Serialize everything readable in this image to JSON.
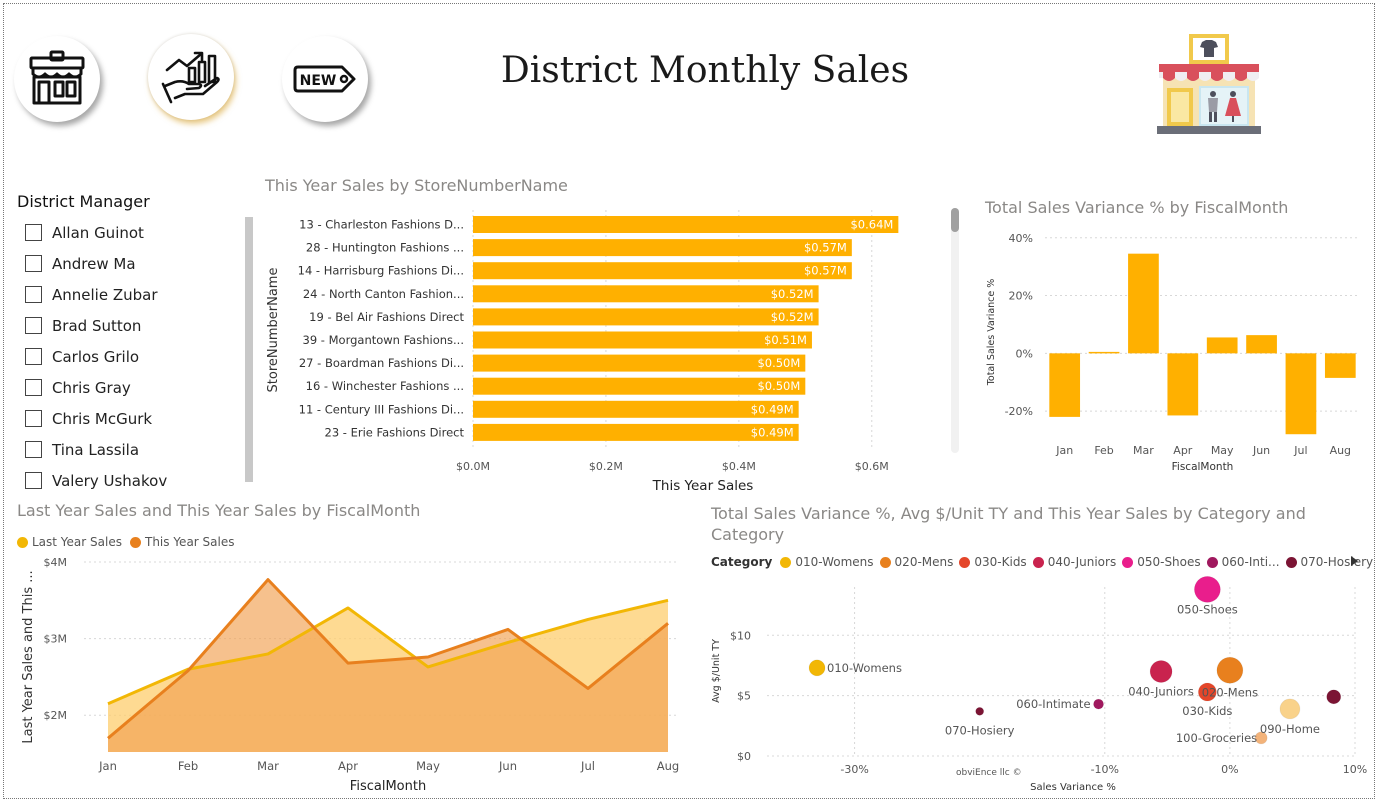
{
  "report": {
    "title": "District Monthly Sales",
    "watermark": "obviEnce llc ©"
  },
  "nav": [
    {
      "name": "store-nav-button",
      "icon": "store-icon",
      "active": false
    },
    {
      "name": "sales-growth-nav-button",
      "icon": "sales-growth-icon",
      "active": true
    },
    {
      "name": "new-stores-nav-button",
      "icon": "new-tag-icon",
      "active": false
    }
  ],
  "colors": {
    "accent": "#FFB000",
    "womens": "#F2B705",
    "mens": "#E8801E",
    "kids": "#E4462A",
    "juniors": "#C9234E",
    "shoes": "#E91E8C",
    "intimate": "#A0185E",
    "hosiery": "#7B1434",
    "groceries": "#F3B37A",
    "home": "#F9D28A"
  },
  "slicer": {
    "title": "District Manager",
    "items": [
      "Allan Guinot",
      "Andrew Ma",
      "Annelie Zubar",
      "Brad Sutton",
      "Carlos Grilo",
      "Chris Gray",
      "Chris McGurk",
      "Tina Lassila",
      "Valery Ushakov"
    ]
  },
  "bar_chart": {
    "title": "This Year Sales by StoreNumberName",
    "chart_data": {
      "type": "bar",
      "orientation": "horizontal",
      "categories": [
        "13 - Charleston Fashions D...",
        "28 - Huntington Fashions ...",
        "14 - Harrisburg Fashions Di...",
        "24 - North Canton Fashion...",
        "19 - Bel Air Fashions Direct",
        "39 - Morgantown Fashions...",
        "27 - Boardman Fashions Di...",
        "16 - Winchester Fashions ...",
        "11 - Century III Fashions Di...",
        "23 - Erie Fashions Direct"
      ],
      "values": [
        0.64,
        0.57,
        0.57,
        0.52,
        0.52,
        0.51,
        0.5,
        0.5,
        0.49,
        0.49
      ],
      "value_labels": [
        "$0.64M",
        "$0.57M",
        "$0.57M",
        "$0.52M",
        "$0.52M",
        "$0.51M",
        "$0.50M",
        "$0.50M",
        "$0.49M",
        "$0.49M"
      ],
      "xlabel": "This Year Sales",
      "ylabel": "StoreNumberName",
      "xlim": [
        0,
        0.65
      ],
      "xticks": [
        0,
        0.2,
        0.4,
        0.6
      ],
      "xtick_labels": [
        "$0.0M",
        "$0.2M",
        "$0.4M",
        "$0.6M"
      ],
      "grid": true
    }
  },
  "variance_chart": {
    "title": "Total Sales Variance % by FiscalMonth",
    "chart_data": {
      "type": "bar",
      "categories": [
        "Jan",
        "Feb",
        "Mar",
        "Apr",
        "May",
        "Jun",
        "Jul",
        "Aug"
      ],
      "values": [
        -22,
        0.5,
        34.5,
        -21.5,
        5.5,
        6.3,
        -28,
        -8.5
      ],
      "xlabel": "FiscalMonth",
      "ylabel": "Total Sales Variance %",
      "ylim": [
        -30,
        42
      ],
      "yticks": [
        -20,
        0,
        20,
        40
      ],
      "ytick_labels": [
        "-20%",
        "0%",
        "20%",
        "40%"
      ],
      "grid": true
    }
  },
  "area_chart": {
    "title": "Last Year Sales and This Year Sales by FiscalMonth",
    "legend": [
      "Last Year Sales",
      "This Year Sales"
    ],
    "chart_data": {
      "type": "area",
      "categories": [
        "Jan",
        "Feb",
        "Mar",
        "Apr",
        "May",
        "Jun",
        "Jul",
        "Aug"
      ],
      "series": [
        {
          "name": "Last Year Sales",
          "values": [
            2.15,
            2.6,
            2.8,
            3.4,
            2.63,
            2.95,
            3.25,
            3.5
          ]
        },
        {
          "name": "This Year Sales",
          "values": [
            1.7,
            2.58,
            3.77,
            2.68,
            2.76,
            3.12,
            2.35,
            3.2
          ]
        }
      ],
      "xlabel": "FiscalMonth",
      "ylabel": "Last Year Sales and This ...",
      "ylim": [
        1.52,
        4.0
      ],
      "yticks": [
        2,
        3,
        4
      ],
      "ytick_labels": [
        "$2M",
        "$3M",
        "$4M"
      ],
      "grid": true
    }
  },
  "scatter_chart": {
    "title": "Total Sales Variance %, Avg $/Unit TY and This Year Sales by Category and Category",
    "legend_title": "Category",
    "legend": [
      "010-Womens",
      "020-Mens",
      "030-Kids",
      "040-Juniors",
      "050-Shoes",
      "060-Inti...",
      "070-Hosiery"
    ],
    "chart_data": {
      "type": "scatter",
      "xlabel": "Sales Variance %",
      "ylabel": "Avg $/Unit TY",
      "xlim": [
        -37,
        10
      ],
      "ylim": [
        0,
        14
      ],
      "xticks": [
        -30,
        -10,
        0,
        10
      ],
      "xtick_labels": [
        "-30%",
        "-10%",
        "0%",
        "10%"
      ],
      "yticks": [
        0,
        5,
        10
      ],
      "ytick_labels": [
        "$0",
        "$5",
        "$10"
      ],
      "grid": true,
      "points": [
        {
          "label": "010-Womens",
          "x": -33,
          "y": 7.3,
          "size": 8,
          "color": "#F2B705"
        },
        {
          "label": "020-Mens",
          "x": 0,
          "y": 7.1,
          "size": 13,
          "color": "#E8801E"
        },
        {
          "label": "030-Kids",
          "x": -1.8,
          "y": 5.3,
          "size": 9,
          "color": "#E4462A"
        },
        {
          "label": "040-Juniors",
          "x": -5.5,
          "y": 7.0,
          "size": 11,
          "color": "#C9234E"
        },
        {
          "label": "050-Shoes",
          "x": -1.8,
          "y": 13.8,
          "size": 13,
          "color": "#E91E8C"
        },
        {
          "label": "060-Intimate",
          "x": -10.5,
          "y": 4.3,
          "size": 5,
          "color": "#A0185E"
        },
        {
          "label": "070-Hosiery",
          "x": -20,
          "y": 3.7,
          "size": 4,
          "color": "#7B1434"
        },
        {
          "label": "",
          "x": 8.3,
          "y": 4.9,
          "size": 7,
          "color": "#7B1434"
        },
        {
          "label": "090-Home",
          "x": 4.8,
          "y": 3.9,
          "size": 10,
          "color": "#F9D28A"
        },
        {
          "label": "100-Groceries",
          "x": 2.5,
          "y": 1.5,
          "size": 6,
          "color": "#F3B37A"
        }
      ]
    }
  }
}
